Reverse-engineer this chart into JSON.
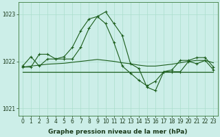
{
  "title": "Graphe pression niveau de la mer (hPa)",
  "background_color": "#cceee8",
  "grid_color": "#aaddcc",
  "line_color": "#1a5c1a",
  "xlim": [
    -0.5,
    23.5
  ],
  "ylim": [
    1020.85,
    1023.25
  ],
  "yticks": [
    1021,
    1022,
    1023
  ],
  "xticks": [
    0,
    1,
    2,
    3,
    4,
    5,
    6,
    7,
    8,
    9,
    10,
    11,
    12,
    13,
    14,
    15,
    16,
    17,
    18,
    19,
    20,
    21,
    22,
    23
  ],
  "series1_x": [
    0,
    1,
    2,
    3,
    4,
    5,
    6,
    7,
    8,
    9,
    10,
    11,
    12,
    13,
    14,
    15,
    16,
    17,
    18,
    19,
    20,
    21,
    22,
    23
  ],
  "series1_y": [
    1021.9,
    1022.1,
    1021.9,
    1022.05,
    1022.05,
    1022.05,
    1022.05,
    1022.3,
    1022.7,
    1022.95,
    1023.05,
    1022.8,
    1022.55,
    1021.95,
    1021.85,
    1021.45,
    1021.38,
    1021.78,
    1021.78,
    1021.78,
    1022.0,
    1021.95,
    1022.02,
    1021.82
  ],
  "series2_x": [
    0,
    1,
    2,
    3,
    4,
    5,
    6,
    7,
    8,
    9,
    10,
    11,
    12,
    13,
    14,
    15,
    16,
    17,
    18,
    19,
    20,
    21,
    22,
    23
  ],
  "series2_y": [
    1021.88,
    1021.88,
    1022.15,
    1022.15,
    1022.05,
    1022.1,
    1022.3,
    1022.65,
    1022.9,
    1022.95,
    1022.8,
    1022.4,
    1021.9,
    1021.75,
    1021.6,
    1021.48,
    1021.58,
    1021.78,
    1021.82,
    1022.02,
    1022.02,
    1022.08,
    1022.08,
    1021.88
  ],
  "series3_x": [
    0,
    1,
    2,
    3,
    4,
    5,
    6,
    7,
    8,
    9,
    10,
    11,
    12,
    13,
    14,
    15,
    16,
    17,
    18,
    19,
    20,
    21,
    22,
    23
  ],
  "series3_y": [
    1021.78,
    1021.78,
    1021.78,
    1021.78,
    1021.78,
    1021.78,
    1021.78,
    1021.78,
    1021.78,
    1021.78,
    1021.78,
    1021.78,
    1021.78,
    1021.78,
    1021.78,
    1021.78,
    1021.78,
    1021.78,
    1021.78,
    1021.78,
    1021.78,
    1021.78,
    1021.78,
    1021.78
  ],
  "series4_x": [
    0,
    1,
    2,
    3,
    4,
    5,
    6,
    7,
    8,
    9,
    10,
    11,
    12,
    13,
    14,
    15,
    16,
    17,
    18,
    19,
    20,
    21,
    22,
    23
  ],
  "series4_y": [
    1021.88,
    1021.9,
    1021.92,
    1021.94,
    1021.95,
    1021.96,
    1021.98,
    1022.0,
    1022.02,
    1022.04,
    1022.02,
    1022.0,
    1021.97,
    1021.95,
    1021.92,
    1021.9,
    1021.9,
    1021.92,
    1021.94,
    1021.97,
    1022.0,
    1022.02,
    1022.02,
    1021.97
  ],
  "ylabel_fontsize": 5.5,
  "xlabel_fontsize": 5.5,
  "title_fontsize": 6.5
}
